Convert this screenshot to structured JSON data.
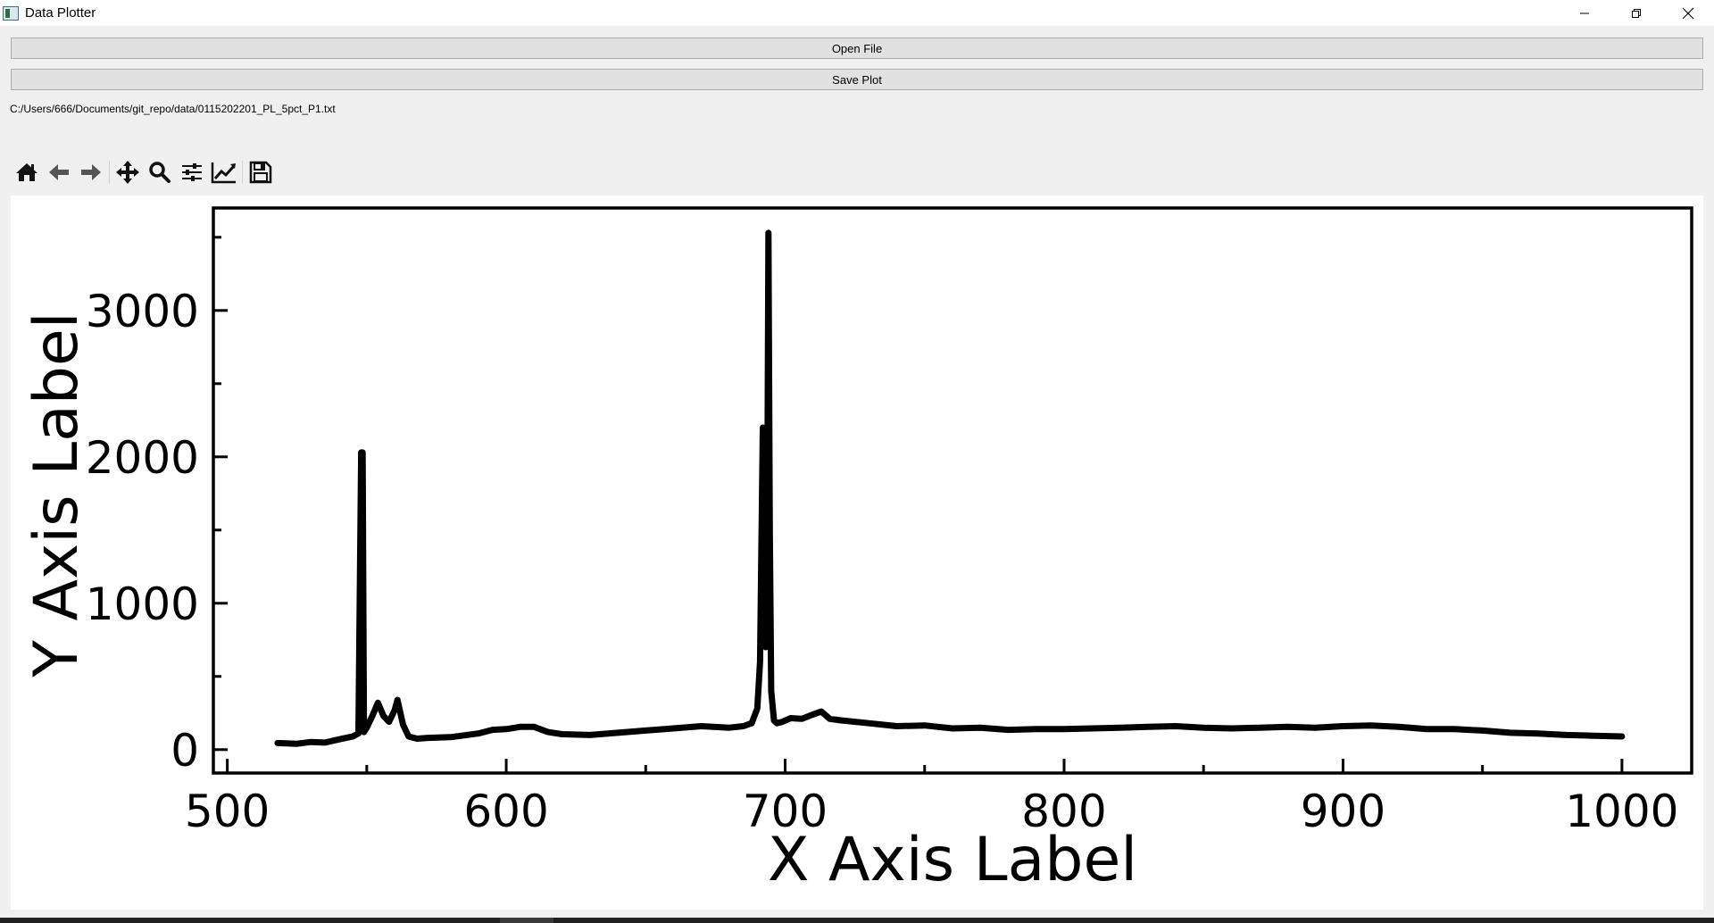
{
  "window": {
    "title": "Data Plotter",
    "icon": "app-icon",
    "controls": [
      "minimize-icon",
      "restore-icon",
      "close-icon"
    ]
  },
  "buttons": {
    "open_file": "Open File",
    "save_plot": "Save Plot"
  },
  "file_path": "C:/Users/666/Documents/git_repo/data/0115202201_PL_5pct_P1.txt",
  "toolbar": {
    "icons": [
      "home-icon",
      "back-icon",
      "forward-icon",
      "pan-icon",
      "zoom-icon",
      "configure-subplots-icon",
      "edit-axis-icon",
      "save-icon"
    ]
  },
  "chart_data": {
    "type": "line",
    "title": "",
    "xlabel": "X Axis Label",
    "ylabel": "Y Axis Label",
    "xlim": [
      495,
      1025
    ],
    "ylim": [
      -160,
      3700
    ],
    "x_ticks": [
      500,
      600,
      700,
      800,
      900,
      1000
    ],
    "x_tick_labels": [
      "500",
      "600",
      "700",
      "800",
      "900",
      "1000"
    ],
    "x_minor_ticks": [
      550,
      650,
      750,
      850,
      950
    ],
    "y_ticks": [
      0,
      1000,
      2000,
      3000
    ],
    "y_tick_labels": [
      "0",
      "1000",
      "2000",
      "3000"
    ],
    "y_minor_ticks": [
      500,
      1500,
      2500,
      3500
    ],
    "grid": false,
    "line_color": "#000000",
    "series": [
      {
        "x": [
          518,
          525,
          530,
          535,
          540,
          545,
          547,
          548,
          548.5,
          549,
          550,
          552,
          554,
          556,
          558,
          560,
          561,
          563,
          565,
          568,
          572,
          580,
          590,
          595,
          600,
          605,
          610,
          615,
          620,
          630,
          640,
          650,
          660,
          670,
          680,
          685,
          688,
          690,
          691,
          692,
          692.5,
          693,
          693.5,
          694,
          694.5,
          695,
          696,
          697,
          699,
          702,
          706,
          710,
          713,
          716,
          720,
          730,
          740,
          750,
          760,
          770,
          780,
          790,
          800,
          810,
          820,
          830,
          840,
          850,
          860,
          870,
          880,
          890,
          900,
          910,
          920,
          930,
          940,
          950,
          960,
          970,
          980,
          990,
          1000
        ],
        "y": [
          45,
          40,
          52,
          48,
          70,
          90,
          110,
          2030,
          2030,
          120,
          150,
          230,
          320,
          230,
          190,
          270,
          340,
          170,
          90,
          75,
          80,
          85,
          110,
          135,
          140,
          155,
          155,
          120,
          105,
          100,
          115,
          130,
          145,
          160,
          150,
          160,
          180,
          280,
          600,
          2200,
          1800,
          700,
          1200,
          3530,
          1500,
          400,
          200,
          180,
          190,
          215,
          210,
          240,
          260,
          210,
          200,
          180,
          160,
          165,
          145,
          150,
          135,
          140,
          140,
          145,
          150,
          155,
          160,
          150,
          145,
          150,
          155,
          150,
          160,
          165,
          155,
          140,
          140,
          130,
          115,
          110,
          100,
          95,
          90
        ]
      }
    ]
  }
}
